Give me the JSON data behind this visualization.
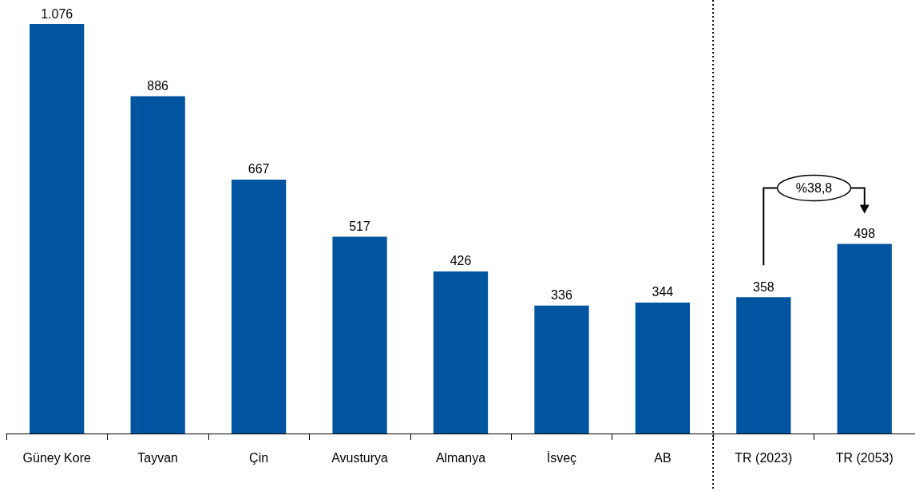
{
  "chart_data": {
    "type": "bar",
    "categories": [
      "Güney Kore",
      "Tayvan",
      "Çin",
      "Avusturya",
      "Almanya",
      "İsveç",
      "AB",
      "TR (2023)",
      "TR (2053)"
    ],
    "values": [
      1076,
      886,
      667,
      517,
      426,
      336,
      344,
      358,
      498
    ],
    "value_labels": [
      "1.076",
      "886",
      "667",
      "517",
      "426",
      "336",
      "344",
      "358",
      "498"
    ],
    "color": "#0054a0",
    "annotations": [
      "%38,8"
    ]
  }
}
